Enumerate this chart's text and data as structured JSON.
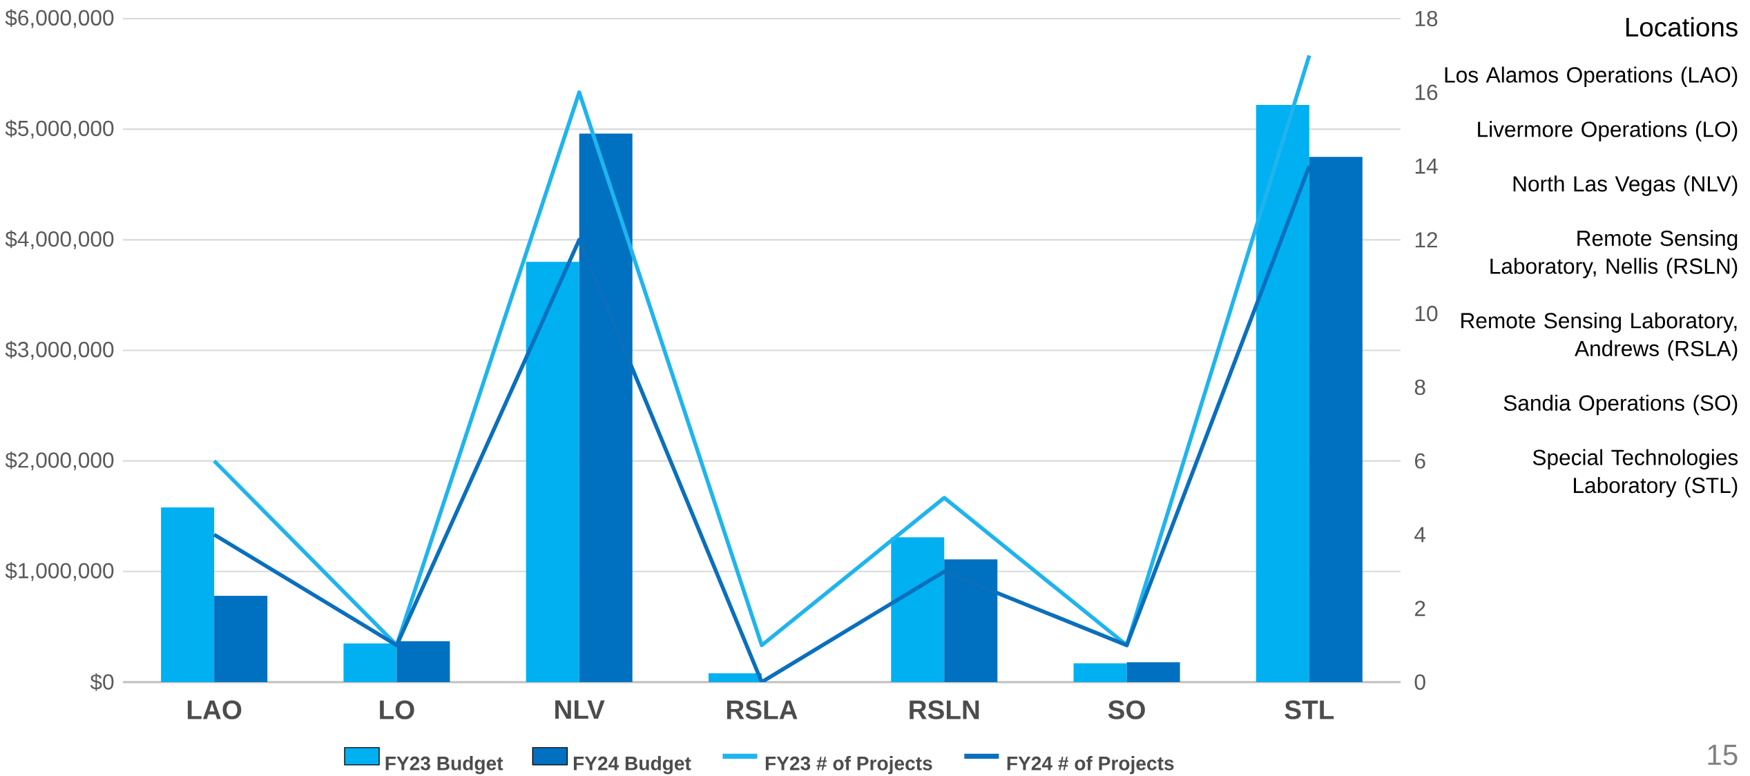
{
  "chart_data": {
    "type": "bar",
    "categories": [
      "LAO",
      "LO",
      "NLV",
      "RSLA",
      "RSLN",
      "SO",
      "STL"
    ],
    "series": [
      {
        "name": "FY23 Budget",
        "color": "#00b0f0",
        "values": [
          1580000,
          350000,
          3800000,
          80000,
          1310000,
          170000,
          5220000
        ]
      },
      {
        "name": "FY24 Budget",
        "color": "#0070c0",
        "values": [
          780000,
          370000,
          4960000,
          0,
          1110000,
          180000,
          4750000
        ]
      },
      {
        "name": "FY23 # of Projects",
        "type": "line",
        "axis": "y2",
        "color": "#1fb4ee",
        "values": [
          6,
          1,
          16,
          1,
          5,
          1,
          17
        ]
      },
      {
        "name": "FY24 # of Projects",
        "type": "line",
        "axis": "y2",
        "color": "#0a6fbd",
        "values": [
          4,
          1,
          12,
          0,
          3,
          1,
          14
        ]
      }
    ],
    "ylim": [
      0,
      6000000
    ],
    "yticks": [
      {
        "value": 0,
        "label": "$0"
      },
      {
        "value": 1000000,
        "label": "$1,000,000"
      },
      {
        "value": 2000000,
        "label": "$2,000,000"
      },
      {
        "value": 3000000,
        "label": "$3,000,000"
      },
      {
        "value": 4000000,
        "label": "$4,000,000"
      },
      {
        "value": 5000000,
        "label": "$5,000,000"
      },
      {
        "value": 6000000,
        "label": "$6,000,000"
      }
    ],
    "y2lim": [
      0,
      18
    ],
    "y2ticks": [
      0,
      2,
      4,
      6,
      8,
      10,
      12,
      14,
      16,
      18
    ],
    "grid": "y",
    "legend": "bottom",
    "annotations": [
      "Locations",
      "Los Alamos Operations (LAO)",
      "Livermore Operations (LO)",
      "North Las Vegas (NLV)",
      "Remote Sensing Laboratory, Nellis (RSLN)",
      "Remote Sensing Laboratory, Andrews (RSLA)",
      "Sandia Operations (SO)",
      "Special Technologies Laboratory (STL)",
      "15"
    ]
  }
}
